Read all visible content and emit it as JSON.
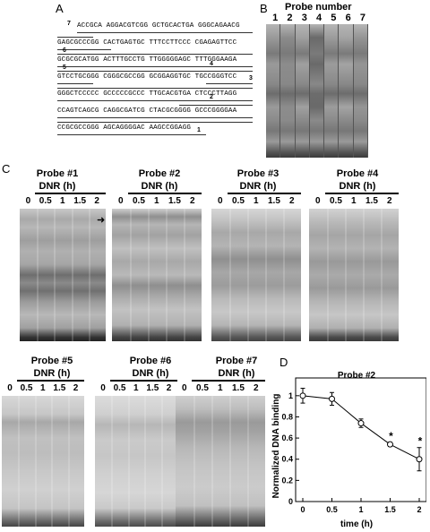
{
  "panels": {
    "a": "A",
    "b": "B",
    "c": "C",
    "d": "D"
  },
  "sequence": {
    "lines": [
      "ACCGCA AGGACGTCGG GCTGCACTGA GGGCAGAACG",
      "GAGCGCCCGG CACTGAGTGC TTTCCTTCCC CGAGAGTTCC",
      "GCGCGCATGG ACTTTGCCTG TTGGGGGAGC TTTGGGAAGA",
      "GTCCTGCGGG CGGGCGCCGG GCGGAGGTGC TGCCGGGTCC",
      "GGGCTCCCCC GCCCCCGCCC TTGCACGTGA CTCCCTTAGG",
      "CCAGTCAGCG CAGGCGATCG CTACGCGGGG GCCCGGGGAA",
      "CCGCGCCGGG AGCAGGGGAC AAGCCGGAGG"
    ],
    "probe_numbers": [
      "7",
      "6",
      "5",
      "4",
      "3",
      "2",
      "1"
    ]
  },
  "probe_gel": {
    "title": "Probe number",
    "lanes": [
      "1",
      "2",
      "3",
      "4",
      "5",
      "6",
      "7"
    ]
  },
  "time_gels": [
    {
      "title": "Probe #1",
      "unit": "DNR (h)",
      "times": [
        "0",
        "0.5",
        "1",
        "1.5",
        "2"
      ]
    },
    {
      "title": "Probe #2",
      "unit": "DNR (h)",
      "times": [
        "0",
        "0.5",
        "1",
        "1.5",
        "2"
      ]
    },
    {
      "title": "Probe #3",
      "unit": "DNR (h)",
      "times": [
        "0",
        "0.5",
        "1",
        "1.5",
        "2"
      ]
    },
    {
      "title": "Probe #4",
      "unit": "DNR (h)",
      "times": [
        "0",
        "0.5",
        "1",
        "1.5",
        "2"
      ]
    },
    {
      "title": "Probe #5",
      "unit": "DNR (h)",
      "times": [
        "0",
        "0.5",
        "1",
        "1.5",
        "2"
      ]
    },
    {
      "title": "Probe #6",
      "unit": "DNR (h)",
      "times": [
        "0",
        "0.5",
        "1",
        "1.5",
        "2"
      ]
    },
    {
      "title": "Probe #7",
      "unit": "DNR (h)",
      "times": [
        "0",
        "0.5",
        "1",
        "1.5",
        "2"
      ]
    }
  ],
  "arrow_glyph": "➜",
  "chart_data": {
    "type": "line",
    "title": "Probe #2",
    "xlabel": "time (h)",
    "ylabel": "Normalized DNA binding",
    "x": [
      0,
      0.5,
      1,
      1.5,
      2
    ],
    "values": [
      1.0,
      0.97,
      0.74,
      0.54,
      0.4
    ],
    "errors": [
      0.07,
      0.06,
      0.04,
      0.02,
      0.11
    ],
    "significant": [
      false,
      false,
      false,
      true,
      true
    ],
    "significance_mark": "*",
    "xlim": [
      0,
      2
    ],
    "ylim": [
      0,
      1.1
    ],
    "xticks": [
      "0",
      "0.5",
      "1",
      "1.5",
      "2"
    ],
    "yticks": [
      "0",
      "0.2",
      "0.4",
      "0.6",
      "0.8",
      "1"
    ],
    "grid": false
  }
}
